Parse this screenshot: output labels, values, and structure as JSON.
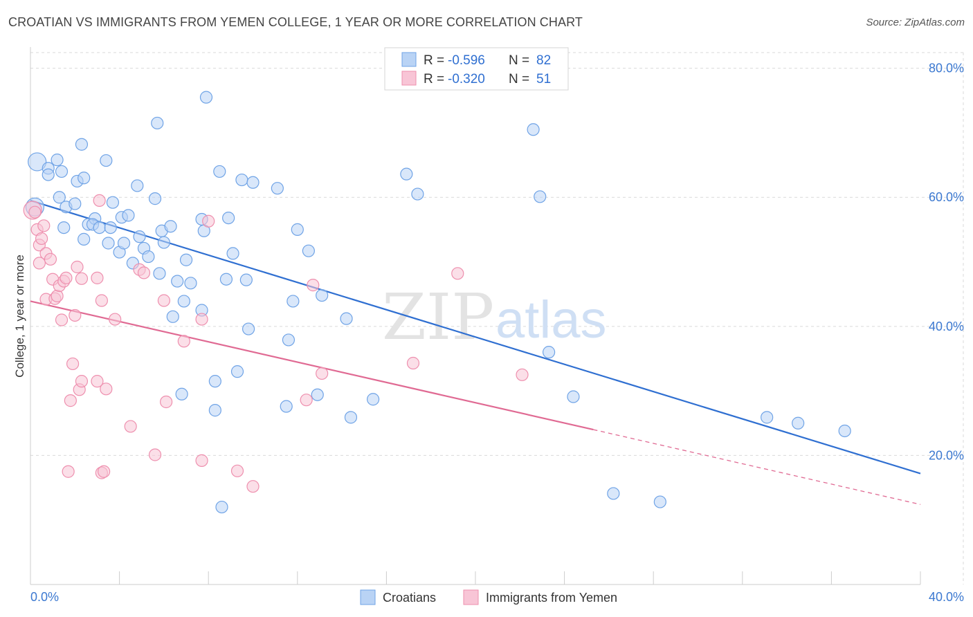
{
  "header": {
    "title": "CROATIAN VS IMMIGRANTS FROM YEMEN COLLEGE, 1 YEAR OR MORE CORRELATION CHART",
    "source": "Source: ZipAtlas.com"
  },
  "watermark": {
    "zip": "ZIP",
    "atlas": "atlas"
  },
  "colors": {
    "blue": "#6fa3e6",
    "blue_fill": "#b9d3f5",
    "blue_line": "#2f6fd1",
    "pink": "#ee8fae",
    "pink_fill": "#f8c5d6",
    "pink_line": "#e06a93",
    "grid": "#d9d9d9",
    "axis_text": "#3b78d0"
  },
  "legend": {
    "rows": [
      {
        "r_label": "R =",
        "r_value": "-0.596",
        "n_label": "N =",
        "n_value": "82"
      },
      {
        "r_label": "R =",
        "r_value": "-0.320",
        "n_label": "N =",
        "n_value": "51"
      }
    ]
  },
  "chart_data": {
    "type": "scatter",
    "title": "CROATIAN VS IMMIGRANTS FROM YEMEN COLLEGE, 1 YEAR OR MORE CORRELATION CHART",
    "xlabel": "",
    "ylabel": "College, 1 year or more",
    "xlim": [
      0,
      40
    ],
    "ylim": [
      0,
      82
    ],
    "x_tick_labels": [
      "0.0%",
      "40.0%"
    ],
    "y_ticks": [
      20,
      40,
      60,
      80
    ],
    "y_tick_labels": [
      "20.0%",
      "40.0%",
      "60.0%",
      "80.0%"
    ],
    "legend_position": "bottom-center",
    "series": [
      {
        "name": "Croatians",
        "color": "blue",
        "trend": {
          "x": [
            0.0,
            40.0
          ],
          "y": [
            59.5,
            17.2
          ]
        },
        "points": [
          {
            "x": 0.3,
            "y": 65.5,
            "big": 1
          },
          {
            "x": 0.2,
            "y": 58.5,
            "big": 1
          },
          {
            "x": 0.8,
            "y": 64.5
          },
          {
            "x": 1.4,
            "y": 64.0
          },
          {
            "x": 1.2,
            "y": 65.8
          },
          {
            "x": 0.8,
            "y": 63.5
          },
          {
            "x": 1.3,
            "y": 60.0
          },
          {
            "x": 1.6,
            "y": 58.5
          },
          {
            "x": 2.0,
            "y": 59.0
          },
          {
            "x": 2.1,
            "y": 62.5
          },
          {
            "x": 2.3,
            "y": 68.2
          },
          {
            "x": 2.4,
            "y": 63.0
          },
          {
            "x": 1.5,
            "y": 55.3
          },
          {
            "x": 2.4,
            "y": 53.5
          },
          {
            "x": 2.6,
            "y": 55.8
          },
          {
            "x": 2.9,
            "y": 56.7
          },
          {
            "x": 2.8,
            "y": 55.8
          },
          {
            "x": 3.1,
            "y": 55.3
          },
          {
            "x": 3.4,
            "y": 65.7
          },
          {
            "x": 3.7,
            "y": 59.2
          },
          {
            "x": 3.5,
            "y": 52.9
          },
          {
            "x": 3.6,
            "y": 55.3
          },
          {
            "x": 4.0,
            "y": 51.5
          },
          {
            "x": 4.1,
            "y": 56.9
          },
          {
            "x": 4.2,
            "y": 52.9
          },
          {
            "x": 4.4,
            "y": 57.2
          },
          {
            "x": 4.8,
            "y": 61.8
          },
          {
            "x": 4.9,
            "y": 53.9
          },
          {
            "x": 4.6,
            "y": 49.8
          },
          {
            "x": 5.1,
            "y": 52.1
          },
          {
            "x": 5.3,
            "y": 50.8
          },
          {
            "x": 5.6,
            "y": 59.8
          },
          {
            "x": 5.7,
            "y": 71.5
          },
          {
            "x": 5.8,
            "y": 48.2
          },
          {
            "x": 5.9,
            "y": 54.8
          },
          {
            "x": 6.0,
            "y": 53.0
          },
          {
            "x": 6.3,
            "y": 55.5
          },
          {
            "x": 6.6,
            "y": 47.0
          },
          {
            "x": 7.0,
            "y": 50.3
          },
          {
            "x": 6.9,
            "y": 43.9
          },
          {
            "x": 7.2,
            "y": 46.7
          },
          {
            "x": 6.4,
            "y": 41.5
          },
          {
            "x": 7.7,
            "y": 56.6
          },
          {
            "x": 7.7,
            "y": 42.5
          },
          {
            "x": 7.8,
            "y": 54.8
          },
          {
            "x": 7.9,
            "y": 75.5
          },
          {
            "x": 6.8,
            "y": 29.5
          },
          {
            "x": 8.3,
            "y": 31.5
          },
          {
            "x": 8.3,
            "y": 27.0
          },
          {
            "x": 8.5,
            "y": 64.0
          },
          {
            "x": 8.8,
            "y": 47.3
          },
          {
            "x": 8.9,
            "y": 56.8
          },
          {
            "x": 9.1,
            "y": 51.3
          },
          {
            "x": 9.3,
            "y": 33.0
          },
          {
            "x": 9.5,
            "y": 62.7
          },
          {
            "x": 9.7,
            "y": 47.2
          },
          {
            "x": 9.8,
            "y": 39.6
          },
          {
            "x": 10.0,
            "y": 62.3
          },
          {
            "x": 11.1,
            "y": 61.4
          },
          {
            "x": 11.6,
            "y": 37.9
          },
          {
            "x": 11.8,
            "y": 43.9
          },
          {
            "x": 11.5,
            "y": 27.6
          },
          {
            "x": 12.0,
            "y": 55.0
          },
          {
            "x": 12.5,
            "y": 51.7
          },
          {
            "x": 12.9,
            "y": 29.4
          },
          {
            "x": 13.1,
            "y": 44.8
          },
          {
            "x": 14.2,
            "y": 41.2
          },
          {
            "x": 14.4,
            "y": 25.9
          },
          {
            "x": 15.4,
            "y": 28.7
          },
          {
            "x": 16.9,
            "y": 63.6
          },
          {
            "x": 17.4,
            "y": 60.5
          },
          {
            "x": 22.6,
            "y": 70.5
          },
          {
            "x": 22.9,
            "y": 60.1
          },
          {
            "x": 23.3,
            "y": 36.0
          },
          {
            "x": 24.4,
            "y": 29.1
          },
          {
            "x": 26.2,
            "y": 14.1
          },
          {
            "x": 28.3,
            "y": 12.8
          },
          {
            "x": 33.1,
            "y": 25.9
          },
          {
            "x": 34.5,
            "y": 25.0
          },
          {
            "x": 36.6,
            "y": 23.8
          },
          {
            "x": 8.6,
            "y": 12.0
          }
        ]
      },
      {
        "name": "Immigrants from Yemen",
        "color": "pink",
        "trend": {
          "x": [
            0.0,
            25.3
          ],
          "y": [
            43.9,
            24.0
          ]
        },
        "trend_dashed": {
          "x": [
            25.3,
            40.0
          ],
          "y": [
            24.0,
            12.4
          ]
        },
        "points": [
          {
            "x": 0.1,
            "y": 58.0,
            "big": 1
          },
          {
            "x": 0.2,
            "y": 57.7
          },
          {
            "x": 0.3,
            "y": 55.0
          },
          {
            "x": 0.4,
            "y": 52.6
          },
          {
            "x": 0.4,
            "y": 49.8
          },
          {
            "x": 0.5,
            "y": 53.6
          },
          {
            "x": 0.6,
            "y": 55.6
          },
          {
            "x": 0.7,
            "y": 51.3
          },
          {
            "x": 0.7,
            "y": 44.2
          },
          {
            "x": 0.9,
            "y": 50.4
          },
          {
            "x": 1.0,
            "y": 47.3
          },
          {
            "x": 1.1,
            "y": 44.3
          },
          {
            "x": 1.2,
            "y": 44.7
          },
          {
            "x": 1.3,
            "y": 46.3
          },
          {
            "x": 1.4,
            "y": 41.0
          },
          {
            "x": 1.5,
            "y": 47.0
          },
          {
            "x": 1.6,
            "y": 47.5
          },
          {
            "x": 1.7,
            "y": 17.5
          },
          {
            "x": 1.8,
            "y": 28.5
          },
          {
            "x": 1.9,
            "y": 34.2
          },
          {
            "x": 2.0,
            "y": 41.7
          },
          {
            "x": 2.1,
            "y": 49.2
          },
          {
            "x": 2.2,
            "y": 30.2
          },
          {
            "x": 2.3,
            "y": 31.5
          },
          {
            "x": 2.3,
            "y": 47.4
          },
          {
            "x": 3.0,
            "y": 31.5
          },
          {
            "x": 3.0,
            "y": 47.5
          },
          {
            "x": 3.1,
            "y": 59.5
          },
          {
            "x": 3.2,
            "y": 17.3
          },
          {
            "x": 3.3,
            "y": 17.5
          },
          {
            "x": 3.4,
            "y": 30.3
          },
          {
            "x": 3.8,
            "y": 41.1
          },
          {
            "x": 4.5,
            "y": 24.5
          },
          {
            "x": 4.9,
            "y": 48.8
          },
          {
            "x": 5.1,
            "y": 48.3
          },
          {
            "x": 5.6,
            "y": 20.1
          },
          {
            "x": 6.0,
            "y": 44.0
          },
          {
            "x": 6.1,
            "y": 28.3
          },
          {
            "x": 6.9,
            "y": 37.7
          },
          {
            "x": 7.7,
            "y": 41.1
          },
          {
            "x": 7.7,
            "y": 19.2
          },
          {
            "x": 8.0,
            "y": 56.3
          },
          {
            "x": 9.3,
            "y": 17.6
          },
          {
            "x": 10.0,
            "y": 15.2
          },
          {
            "x": 12.4,
            "y": 28.6
          },
          {
            "x": 12.7,
            "y": 46.4
          },
          {
            "x": 13.1,
            "y": 32.7
          },
          {
            "x": 17.2,
            "y": 34.3
          },
          {
            "x": 19.2,
            "y": 48.2
          },
          {
            "x": 22.1,
            "y": 32.5
          },
          {
            "x": 3.2,
            "y": 44.0
          }
        ]
      }
    ]
  },
  "bottom_legend": {
    "items": [
      "Croatians",
      "Immigrants from Yemen"
    ]
  }
}
